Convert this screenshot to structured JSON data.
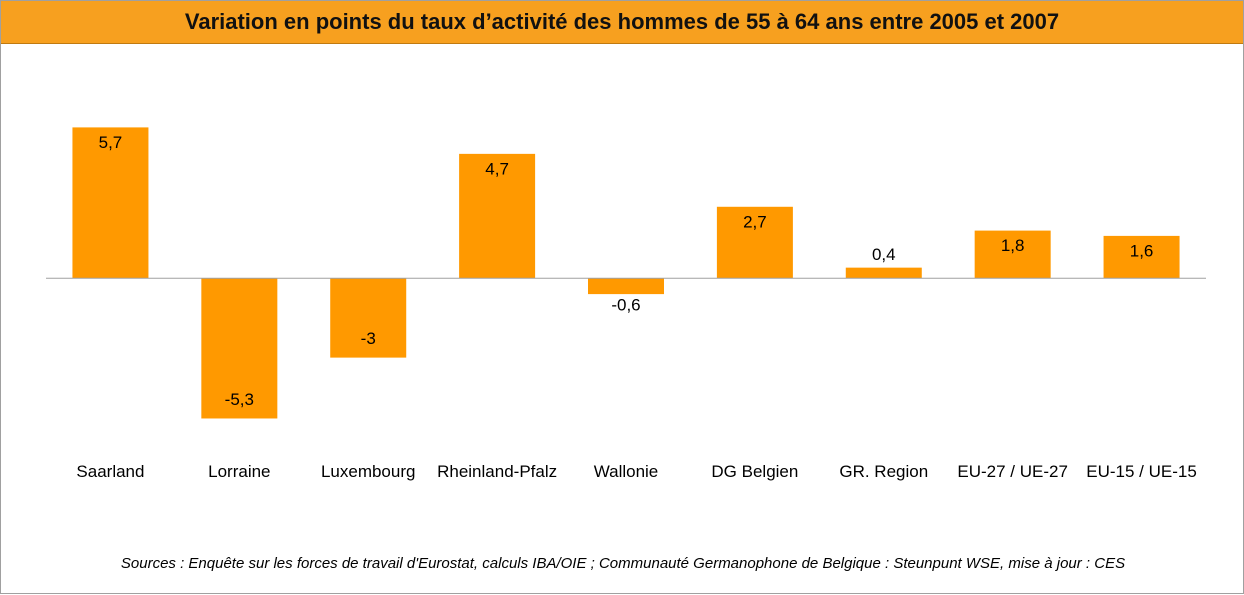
{
  "chart_data": {
    "type": "bar",
    "title": "Variation en points du taux d’activité des hommes de 55 à 64 ans entre 2005 et 2007",
    "categories": [
      "Saarland",
      "Lorraine",
      "Luxembourg",
      "Rheinland-Pfalz",
      "Wallonie",
      "DG Belgien",
      "GR. Region",
      "EU-27 / UE-27",
      "EU-15 / UE-15"
    ],
    "values": [
      5.7,
      -5.3,
      -3,
      4.7,
      -0.6,
      2.7,
      0.4,
      1.8,
      1.6
    ],
    "value_labels": [
      "5,7",
      "-5,3",
      "-3",
      "4,7",
      "-0,6",
      "2,7",
      "0,4",
      "1,8",
      "1,6"
    ],
    "color": "#ff9900",
    "ylim": [
      -6,
      7
    ],
    "source": "Sources : Enquête sur les forces de travail d'Eurostat, calculs IBA/OIE ; Communauté Germanophone de Belgique : Steunpunt WSE, mise à jour  : CES"
  }
}
